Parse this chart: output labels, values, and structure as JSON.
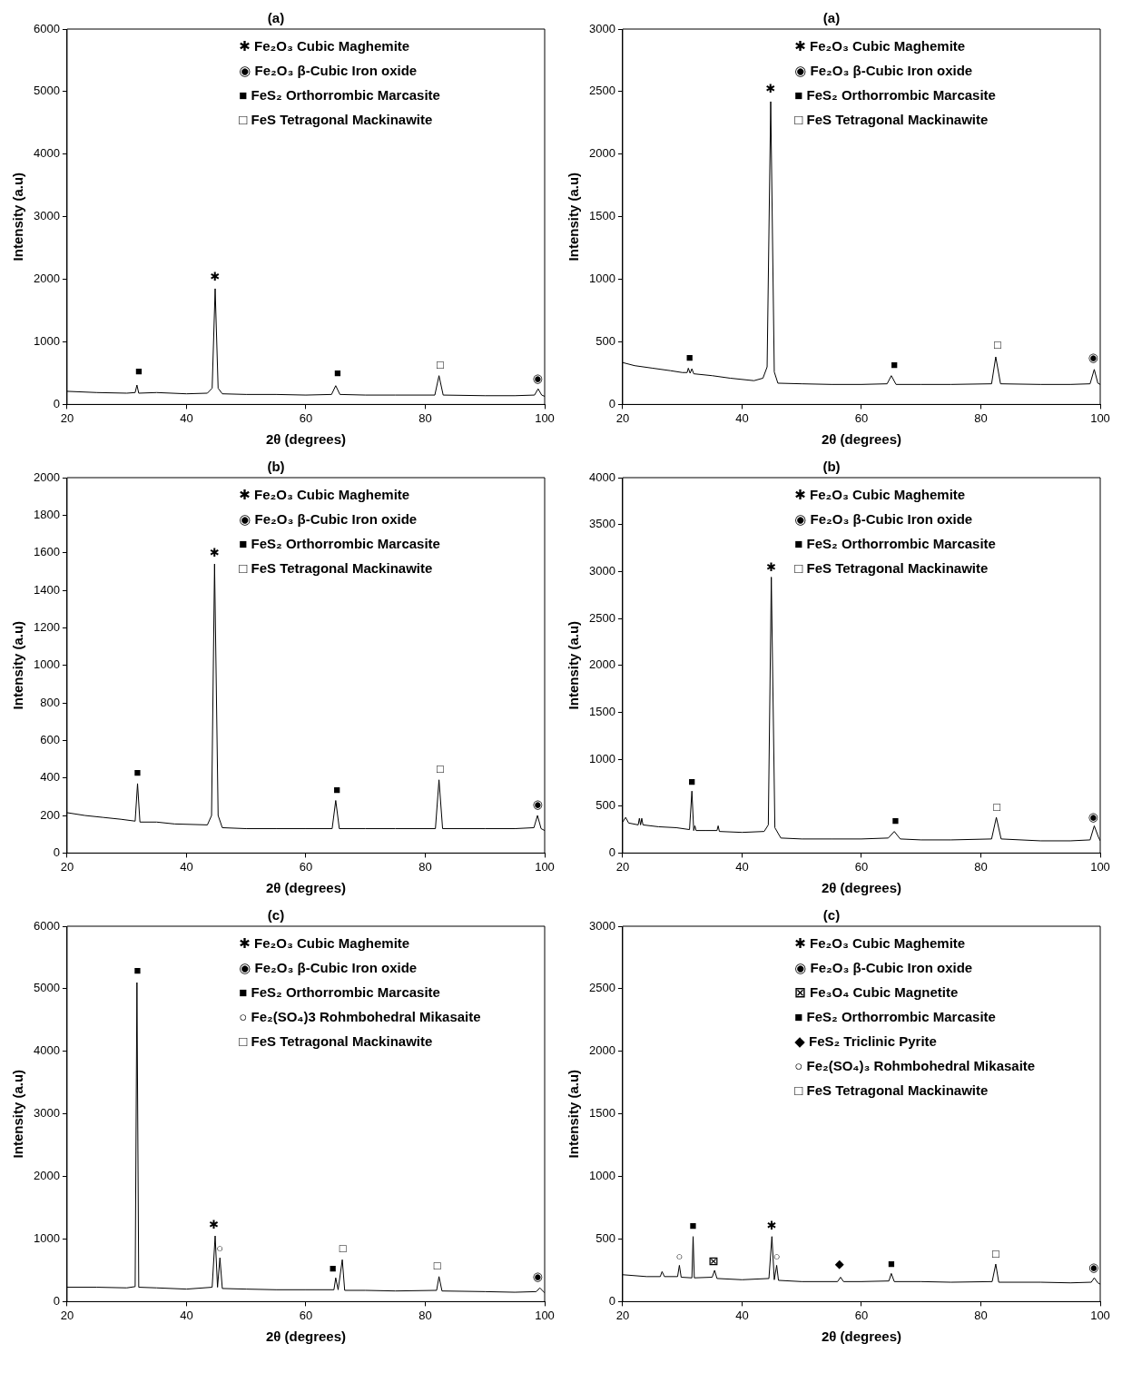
{
  "chart_data": [
    {
      "type": "line",
      "title": "(a)",
      "xlabel": "2θ (degrees)",
      "ylabel": "Intensity (a.u)",
      "xlim": [
        20,
        100
      ],
      "xticks": [
        20,
        40,
        60,
        80,
        100
      ],
      "ylim": [
        0,
        6000
      ],
      "yticks": [
        0,
        1000,
        2000,
        3000,
        4000,
        5000,
        6000
      ],
      "series": [
        {
          "color": "#000000",
          "x": [
            20,
            25,
            30,
            31.4,
            31.7,
            32,
            35,
            40,
            43.5,
            44.3,
            44.8,
            45.3,
            46,
            50,
            55,
            60,
            64.3,
            65,
            65.7,
            70,
            75,
            81.6,
            82.3,
            83,
            90,
            95,
            98.3,
            98.9,
            99.5,
            100
          ],
          "values": [
            210,
            190,
            180,
            190,
            310,
            180,
            190,
            170,
            180,
            260,
            1850,
            260,
            170,
            160,
            160,
            150,
            160,
            300,
            160,
            150,
            150,
            150,
            460,
            150,
            140,
            140,
            150,
            250,
            150,
            130
          ]
        }
      ],
      "annotations": [
        "✱ Fe₂O₃ Cubic Maghemite",
        "◉ Fe₂O₃ β-Cubic Iron oxide",
        "■ FeS₂ Orthorrombic Marcasite",
        "□ FeS Tetragonal Mackinawite",
        {
          "text": "■",
          "x": 32,
          "y": 380
        },
        {
          "text": "✱",
          "x": 44.8,
          "y": 1900
        },
        {
          "text": "■",
          "x": 65.3,
          "y": 360
        },
        {
          "text": "□",
          "x": 82.5,
          "y": 480
        },
        {
          "text": "◉",
          "x": 98.8,
          "y": 270
        }
      ]
    },
    {
      "type": "line",
      "title": "(a)",
      "xlabel": "2θ (degrees)",
      "ylabel": "Intensity (a.u)",
      "xlim": [
        20,
        100
      ],
      "xticks": [
        20,
        40,
        60,
        80,
        100
      ],
      "ylim": [
        0,
        3000
      ],
      "yticks": [
        0,
        500,
        1000,
        1500,
        2000,
        2500,
        3000
      ],
      "series": [
        {
          "color": "#000000",
          "x": [
            20,
            22,
            25,
            28,
            30,
            30.8,
            31,
            31.3,
            31.6,
            31.9,
            35,
            38,
            42,
            43.5,
            44.2,
            44.8,
            45.4,
            46,
            50,
            55,
            60,
            64.3,
            65,
            65.8,
            70,
            75,
            81.8,
            82.5,
            83.3,
            90,
            95,
            98.3,
            99,
            99.6,
            100
          ],
          "values": [
            335,
            310,
            290,
            270,
            255,
            255,
            290,
            250,
            285,
            245,
            230,
            210,
            190,
            210,
            300,
            2420,
            260,
            170,
            165,
            160,
            160,
            165,
            230,
            160,
            160,
            160,
            165,
            380,
            165,
            160,
            160,
            165,
            280,
            170,
            160
          ]
        }
      ],
      "annotations": [
        "✱ Fe₂O₃ Cubic Maghemite",
        "◉ Fe₂O₃ β-Cubic Iron oxide",
        "■ FeS₂ Orthorrombic Marcasite",
        "□ FeS Tetragonal Mackinawite",
        {
          "text": "■",
          "x": 31.2,
          "y": 300
        },
        {
          "text": "✱",
          "x": 44.8,
          "y": 2450
        },
        {
          "text": "■",
          "x": 65.5,
          "y": 240
        },
        {
          "text": "□",
          "x": 82.8,
          "y": 400
        },
        {
          "text": "◉",
          "x": 98.8,
          "y": 300
        }
      ]
    },
    {
      "type": "line",
      "title": "(b)",
      "xlabel": "2θ (degrees)",
      "ylabel": "Intensity (a.u)",
      "xlim": [
        20,
        100
      ],
      "xticks": [
        20,
        40,
        60,
        80,
        100
      ],
      "ylim": [
        0,
        2000
      ],
      "yticks": [
        0,
        200,
        400,
        600,
        800,
        1000,
        1200,
        1400,
        1600,
        1800,
        2000
      ],
      "series": [
        {
          "color": "#000000",
          "x": [
            20,
            23,
            26,
            29,
            31.4,
            31.8,
            32.2,
            35,
            38,
            43.5,
            44.2,
            44.7,
            45.3,
            46,
            50,
            55,
            60,
            64.4,
            65,
            65.6,
            70,
            75,
            81.7,
            82.3,
            82.9,
            90,
            95,
            98.2,
            98.8,
            99.4,
            100
          ],
          "values": [
            215,
            200,
            190,
            180,
            170,
            370,
            165,
            165,
            155,
            150,
            200,
            1540,
            200,
            135,
            130,
            130,
            130,
            130,
            280,
            130,
            130,
            130,
            130,
            390,
            130,
            130,
            130,
            135,
            200,
            130,
            120
          ]
        }
      ],
      "annotations": [
        "✱ Fe₂O₃ Cubic Maghemite",
        "◉ Fe₂O₃ β-Cubic Iron oxide",
        "■ FeS₂ Orthorrombic Marcasite",
        "□ FeS Tetragonal Mackinawite",
        {
          "text": "■",
          "x": 31.8,
          "y": 380
        },
        {
          "text": "✱",
          "x": 44.7,
          "y": 1550
        },
        {
          "text": "■",
          "x": 65.2,
          "y": 290
        },
        {
          "text": "□",
          "x": 82.5,
          "y": 400
        },
        {
          "text": "◉",
          "x": 98.8,
          "y": 210
        }
      ]
    },
    {
      "type": "line",
      "title": "(b)",
      "xlabel": "2θ (degrees)",
      "ylabel": "Intensity (a.u)",
      "xlim": [
        20,
        100
      ],
      "xticks": [
        20,
        40,
        60,
        80,
        100
      ],
      "ylim": [
        0,
        4000
      ],
      "yticks": [
        0,
        500,
        1000,
        1500,
        2000,
        2500,
        3000,
        3500,
        4000
      ],
      "series": [
        {
          "color": "#000000",
          "x": [
            20,
            20.5,
            21,
            22.6,
            22.8,
            23,
            23.2,
            23.4,
            26,
            29,
            31.2,
            31.6,
            31.9,
            32.1,
            32.3,
            34,
            35.8,
            36,
            36.2,
            40,
            43.7,
            44.4,
            44.9,
            45.5,
            46.5,
            50,
            55,
            60,
            64.5,
            65.5,
            66.5,
            70,
            75,
            81.8,
            82.6,
            83.4,
            90,
            95,
            98.3,
            99,
            99.7,
            100
          ],
          "values": [
            330,
            380,
            320,
            300,
            370,
            300,
            370,
            300,
            280,
            270,
            250,
            660,
            240,
            290,
            240,
            240,
            240,
            290,
            230,
            220,
            230,
            300,
            2940,
            270,
            160,
            150,
            150,
            150,
            160,
            230,
            150,
            140,
            140,
            150,
            380,
            150,
            130,
            130,
            140,
            290,
            170,
            130
          ]
        }
      ],
      "annotations": [
        "✱ Fe₂O₃ Cubic Maghemite",
        "◉ Fe₂O₃ β-Cubic Iron oxide",
        "■ FeS₂ Orthorrombic Marcasite",
        "□ FeS Tetragonal Mackinawite",
        {
          "text": "■",
          "x": 31.6,
          "y": 660
        },
        {
          "text": "✱",
          "x": 44.9,
          "y": 2950
        },
        {
          "text": "■",
          "x": 65.7,
          "y": 250
        },
        {
          "text": "□",
          "x": 82.7,
          "y": 390
        },
        {
          "text": "◉",
          "x": 98.8,
          "y": 290
        }
      ]
    },
    {
      "type": "line",
      "title": "(c)",
      "xlabel": "2θ (degrees)",
      "ylabel": "Intensity (a.u)",
      "xlim": [
        20,
        100
      ],
      "xticks": [
        20,
        40,
        60,
        80,
        100
      ],
      "ylim": [
        0,
        6000
      ],
      "yticks": [
        0,
        1000,
        2000,
        3000,
        4000,
        5000,
        6000
      ],
      "series": [
        {
          "color": "#000000",
          "x": [
            20,
            25,
            30,
            31.4,
            31.7,
            32,
            35,
            40,
            44.3,
            44.8,
            45.2,
            45.6,
            46,
            50,
            55,
            60,
            64.7,
            65,
            65.4,
            66.1,
            66.5,
            70,
            75,
            81.9,
            82.3,
            82.8,
            90,
            95,
            98.6,
            99.2,
            100
          ],
          "values": [
            230,
            230,
            220,
            240,
            5100,
            230,
            220,
            200,
            230,
            1050,
            230,
            700,
            210,
            200,
            190,
            190,
            190,
            380,
            190,
            670,
            180,
            180,
            170,
            180,
            400,
            170,
            160,
            150,
            160,
            220,
            140
          ]
        }
      ],
      "annotations": [
        "✱ Fe₂O₃ Cubic Maghemite",
        "◉ Fe₂O₃ β-Cubic Iron oxide",
        "■ FeS₂ Orthorrombic Marcasite",
        "○ Fe₂(SO₄)3 Rohmbohedral Mikasaite",
        "□ FeS Tetragonal Mackinawite",
        {
          "text": "■",
          "x": 31.8,
          "y": 5150
        },
        {
          "text": "✱",
          "x": 44.6,
          "y": 1080
        },
        {
          "text": "○",
          "x": 45.6,
          "y": 700
        },
        {
          "text": "■",
          "x": 64.5,
          "y": 380
        },
        {
          "text": "□",
          "x": 66.2,
          "y": 700
        },
        {
          "text": "□",
          "x": 82,
          "y": 430
        },
        {
          "text": "◉",
          "x": 98.8,
          "y": 260
        }
      ]
    },
    {
      "type": "line",
      "title": "(c)",
      "xlabel": "2θ (degrees)",
      "ylabel": "Intensity (a.u)",
      "xlim": [
        20,
        100
      ],
      "xticks": [
        20,
        40,
        60,
        80,
        100
      ],
      "ylim": [
        0,
        3000
      ],
      "yticks": [
        0,
        500,
        1000,
        1500,
        2000,
        2500,
        3000
      ],
      "series": [
        {
          "color": "#000000",
          "x": [
            20,
            24,
            26.3,
            26.6,
            27,
            29.2,
            29.5,
            29.8,
            31.6,
            31.8,
            32,
            35,
            35.4,
            35.8,
            40,
            44.5,
            45,
            45.4,
            45.8,
            46.1,
            50,
            56,
            56.5,
            57,
            60,
            64.6,
            65,
            65.5,
            70,
            75,
            81.9,
            82.5,
            83,
            90,
            95,
            98.5,
            99,
            99.6,
            100
          ],
          "values": [
            215,
            200,
            200,
            240,
            200,
            200,
            290,
            195,
            190,
            520,
            190,
            195,
            250,
            185,
            175,
            185,
            520,
            175,
            290,
            170,
            160,
            160,
            195,
            160,
            160,
            165,
            225,
            160,
            160,
            155,
            160,
            300,
            155,
            155,
            150,
            155,
            190,
            150,
            140
          ]
        }
      ],
      "annotations": [
        "✱ Fe₂O₃ Cubic Maghemite",
        "◉ Fe₂O₃ β-Cubic Iron oxide",
        "⊠ Fe₃O₄ Cubic Magnetite",
        "■ FeS₂ Orthorrombic Marcasite",
        "◆ FeS₂ Triclinic Pyrite",
        "○ Fe₂(SO₄)₃ Rohmbohedral Mikasaite",
        "□ FeS Tetragonal Mackinawite",
        {
          "text": "○",
          "x": 29.5,
          "y": 290
        },
        {
          "text": "■",
          "x": 31.8,
          "y": 530
        },
        {
          "text": "⊠",
          "x": 35.2,
          "y": 250
        },
        {
          "text": "✱",
          "x": 45,
          "y": 530
        },
        {
          "text": "○",
          "x": 45.8,
          "y": 290
        },
        {
          "text": "◆",
          "x": 56.3,
          "y": 230
        },
        {
          "text": "■",
          "x": 65,
          "y": 230
        },
        {
          "text": "□",
          "x": 82.5,
          "y": 310
        },
        {
          "text": "◉",
          "x": 98.9,
          "y": 200
        }
      ]
    }
  ]
}
